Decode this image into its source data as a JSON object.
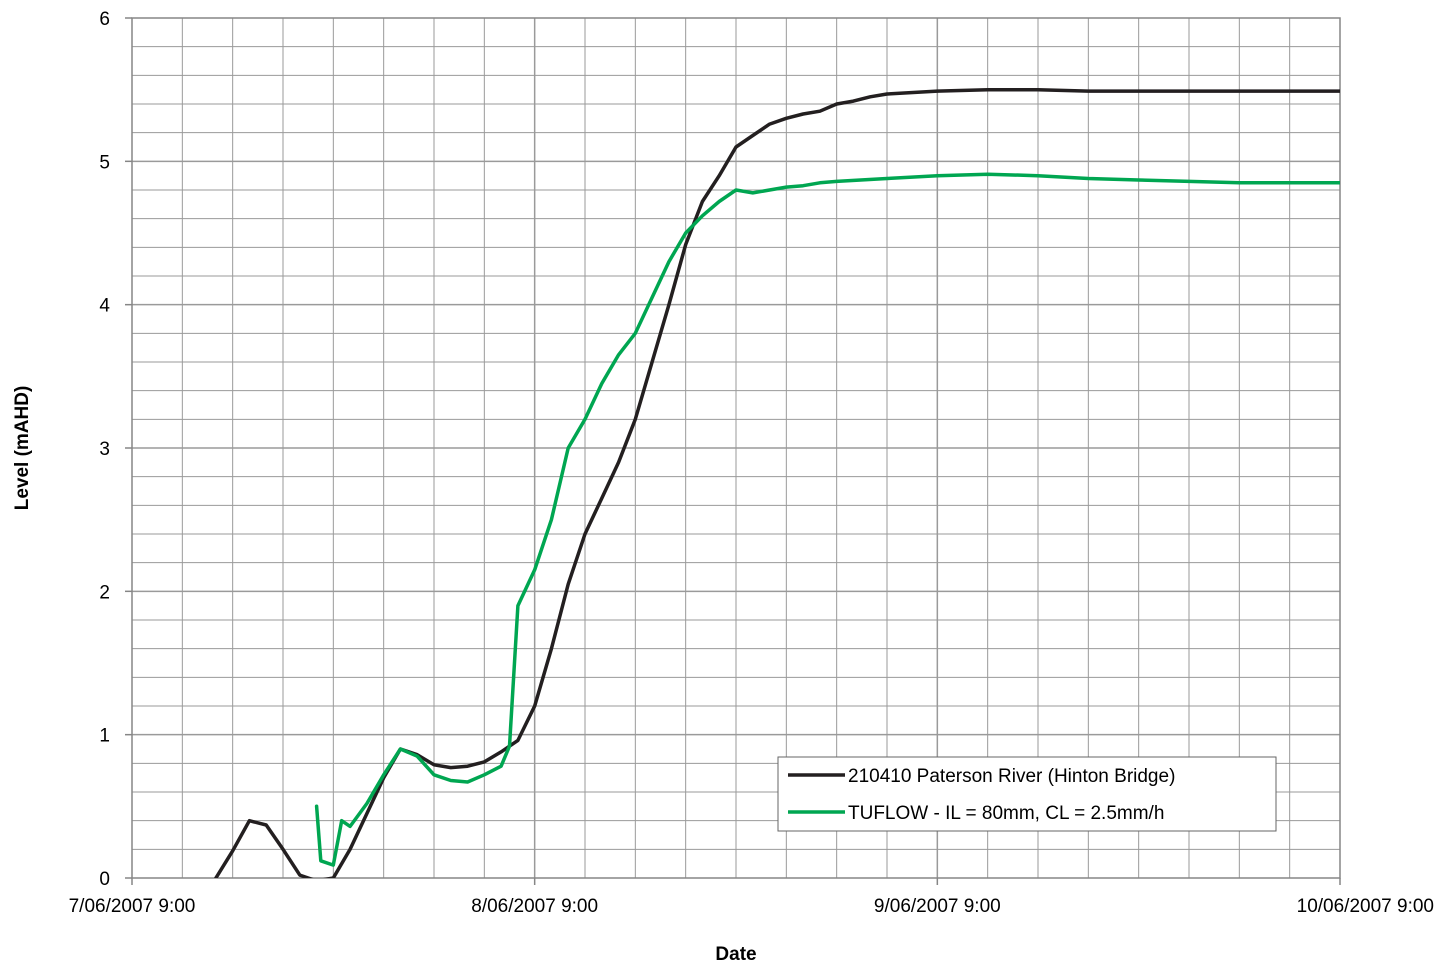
{
  "chart_data": {
    "type": "line",
    "title": "",
    "xlabel": "Date",
    "ylabel": "Level (mAHD)",
    "x_scale": "datetime",
    "xlim": [
      "7/06/2007 9:00",
      "10/06/2007 9:00"
    ],
    "x_ticks": [
      "7/06/2007 9:00",
      "8/06/2007 9:00",
      "9/06/2007 9:00",
      "10/06/2007 9:00"
    ],
    "ylim": [
      0,
      6
    ],
    "y_ticks": [
      "0",
      "1",
      "2",
      "3",
      "4",
      "5",
      "6"
    ],
    "grid": true,
    "legend_position": "bottom-right",
    "series": [
      {
        "name": "210410 Paterson River (Hinton Bridge)",
        "color": "#231f20",
        "x": [
          "7/06/2007 14:00",
          "7/06/2007 15:00",
          "7/06/2007 16:00",
          "7/06/2007 17:00",
          "7/06/2007 18:00",
          "7/06/2007 19:00",
          "7/06/2007 20:00",
          "7/06/2007 21:00",
          "7/06/2007 22:00",
          "7/06/2007 23:00",
          "8/06/2007 0:00",
          "8/06/2007 1:00",
          "8/06/2007 2:00",
          "8/06/2007 3:00",
          "8/06/2007 4:00",
          "8/06/2007 5:00",
          "8/06/2007 6:00",
          "8/06/2007 7:00",
          "8/06/2007 8:00",
          "8/06/2007 9:00",
          "8/06/2007 10:00",
          "8/06/2007 11:00",
          "8/06/2007 12:00",
          "8/06/2007 13:00",
          "8/06/2007 14:00",
          "8/06/2007 15:00",
          "8/06/2007 16:00",
          "8/06/2007 17:00",
          "8/06/2007 18:00",
          "8/06/2007 19:00",
          "8/06/2007 20:00",
          "8/06/2007 21:00",
          "8/06/2007 22:00",
          "8/06/2007 23:00",
          "9/06/2007 0:00",
          "9/06/2007 1:00",
          "9/06/2007 2:00",
          "9/06/2007 3:00",
          "9/06/2007 4:00",
          "9/06/2007 5:00",
          "9/06/2007 6:00",
          "9/06/2007 9:00",
          "9/06/2007 12:00",
          "9/06/2007 15:00",
          "9/06/2007 18:00",
          "9/06/2007 21:00",
          "10/06/2007 0:00",
          "10/06/2007 3:00",
          "10/06/2007 6:00",
          "10/06/2007 9:00"
        ],
        "y": [
          0.0,
          0.19,
          0.4,
          0.37,
          0.2,
          0.02,
          -0.02,
          0.0,
          0.2,
          0.45,
          0.7,
          0.9,
          0.86,
          0.79,
          0.77,
          0.78,
          0.81,
          0.88,
          0.96,
          1.2,
          1.6,
          2.05,
          2.4,
          2.65,
          2.9,
          3.2,
          3.6,
          4.0,
          4.42,
          4.72,
          4.9,
          5.1,
          5.18,
          5.26,
          5.3,
          5.33,
          5.35,
          5.4,
          5.42,
          5.45,
          5.47,
          5.49,
          5.5,
          5.5,
          5.49,
          5.49,
          5.49,
          5.49,
          5.49,
          5.49
        ]
      },
      {
        "name": "TUFLOW - IL = 80mm, CL = 2.5mm/h",
        "color": "#00a651",
        "x": [
          "7/06/2007 20:00",
          "7/06/2007 20:15",
          "7/06/2007 21:00",
          "7/06/2007 21:30",
          "7/06/2007 22:00",
          "7/06/2007 23:00",
          "8/06/2007 0:00",
          "8/06/2007 1:00",
          "8/06/2007 2:00",
          "8/06/2007 3:00",
          "8/06/2007 4:00",
          "8/06/2007 5:00",
          "8/06/2007 6:00",
          "8/06/2007 7:00",
          "8/06/2007 7:30",
          "8/06/2007 8:00",
          "8/06/2007 9:00",
          "8/06/2007 10:00",
          "8/06/2007 11:00",
          "8/06/2007 12:00",
          "8/06/2007 13:00",
          "8/06/2007 14:00",
          "8/06/2007 15:00",
          "8/06/2007 16:00",
          "8/06/2007 17:00",
          "8/06/2007 18:00",
          "8/06/2007 19:00",
          "8/06/2007 20:00",
          "8/06/2007 21:00",
          "8/06/2007 22:00",
          "8/06/2007 23:00",
          "9/06/2007 0:00",
          "9/06/2007 1:00",
          "9/06/2007 2:00",
          "9/06/2007 3:00",
          "9/06/2007 6:00",
          "9/06/2007 9:00",
          "9/06/2007 12:00",
          "9/06/2007 15:00",
          "9/06/2007 18:00",
          "9/06/2007 21:00",
          "10/06/2007 0:00",
          "10/06/2007 3:00",
          "10/06/2007 6:00",
          "10/06/2007 9:00"
        ],
        "y": [
          0.5,
          0.12,
          0.09,
          0.4,
          0.36,
          0.52,
          0.72,
          0.9,
          0.85,
          0.72,
          0.68,
          0.67,
          0.72,
          0.78,
          0.92,
          1.9,
          2.15,
          2.5,
          3.0,
          3.2,
          3.45,
          3.65,
          3.8,
          4.05,
          4.3,
          4.5,
          4.62,
          4.72,
          4.8,
          4.78,
          4.8,
          4.82,
          4.83,
          4.85,
          4.86,
          4.88,
          4.9,
          4.91,
          4.9,
          4.88,
          4.87,
          4.86,
          4.85,
          4.85,
          4.85
        ]
      }
    ]
  }
}
